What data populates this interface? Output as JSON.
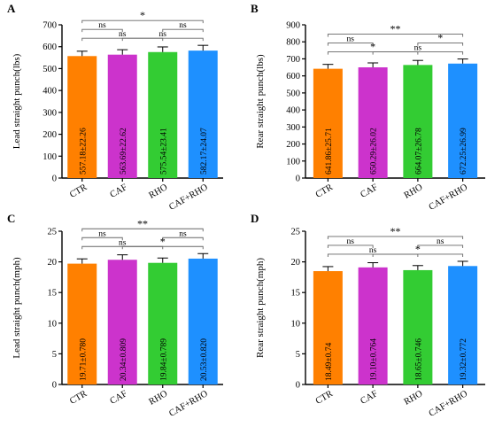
{
  "colors": {
    "CTR": "#FF8000",
    "CAF": "#CC33CC",
    "RHO": "#33CC33",
    "CAF+RHO": "#1E90FF",
    "axis": "#000000",
    "bracket": "#666666"
  },
  "chart_data": [
    {
      "panel": "A",
      "type": "bar",
      "ylabel": "Lead straight punch(lbs)",
      "categories": [
        "CTR",
        "CAF",
        "RHO",
        "CAF+RHO"
      ],
      "values": [
        557.18,
        563.69,
        575.54,
        582.17
      ],
      "errors": [
        22.26,
        22.62,
        23.41,
        24.07
      ],
      "value_labels": [
        "557.18±22.26",
        "563.69±22.62",
        "575.54±23.41",
        "582.17±24.07"
      ],
      "ylim": [
        0,
        700
      ],
      "yticks": [
        "0",
        "100",
        "200",
        "300",
        "400",
        "500",
        "600",
        "700"
      ],
      "yticks_values": [
        0,
        100,
        200,
        300,
        400,
        500,
        600,
        700
      ],
      "brackets": [
        {
          "from": 0,
          "to": 3,
          "label": "*",
          "level": 3
        },
        {
          "from": 0,
          "to": 1,
          "label": "ns",
          "level": 2
        },
        {
          "from": 2,
          "to": 3,
          "label": "ns",
          "level": 2
        },
        {
          "from": 0,
          "to": 2,
          "label": "ns",
          "level": 1
        },
        {
          "from": 1,
          "to": 3,
          "label": "ns",
          "level": 1
        }
      ]
    },
    {
      "panel": "B",
      "type": "bar",
      "ylabel": "Rear straight punch(lbs)",
      "categories": [
        "CTR",
        "CAF",
        "RHO",
        "CAF+RHO"
      ],
      "values": [
        641.86,
        650.29,
        664.07,
        672.25
      ],
      "errors": [
        25.71,
        26.02,
        26.78,
        26.99
      ],
      "value_labels": [
        "641.86±25.71",
        "650.29±26.02",
        "664.07±26.78",
        "672.25±26.99"
      ],
      "ylim": [
        0,
        900
      ],
      "yticks": [
        "0",
        "100",
        "200",
        "300",
        "400",
        "500",
        "600",
        "700",
        "800",
        "900"
      ],
      "yticks_values": [
        0,
        100,
        200,
        300,
        400,
        500,
        600,
        700,
        800,
        900
      ],
      "brackets": [
        {
          "from": 0,
          "to": 3,
          "label": "**",
          "level": 3
        },
        {
          "from": 0,
          "to": 1,
          "label": "ns",
          "level": 2
        },
        {
          "from": 2,
          "to": 3,
          "label": "*",
          "level": 2
        },
        {
          "from": 0,
          "to": 2,
          "label": "*",
          "level": 1
        },
        {
          "from": 1,
          "to": 3,
          "label": "ns",
          "level": 1
        }
      ]
    },
    {
      "panel": "C",
      "type": "bar",
      "ylabel": "Lead straight punch(mph)",
      "categories": [
        "CTR",
        "CAF",
        "RHO",
        "CAF+RHO"
      ],
      "values": [
        19.71,
        20.34,
        19.84,
        20.53
      ],
      "errors": [
        0.78,
        0.809,
        0.789,
        0.82
      ],
      "value_labels": [
        "19.71±0.780",
        "20.34±0.809",
        "19.84±0.789",
        "20.53±0.820"
      ],
      "ylim": [
        0,
        25
      ],
      "yticks": [
        "0",
        "5",
        "10",
        "15",
        "20",
        "25"
      ],
      "yticks_values": [
        0,
        5,
        10,
        15,
        20,
        25
      ],
      "brackets": [
        {
          "from": 0,
          "to": 3,
          "label": "**",
          "level": 3
        },
        {
          "from": 0,
          "to": 1,
          "label": "ns",
          "level": 2
        },
        {
          "from": 2,
          "to": 3,
          "label": "ns",
          "level": 2
        },
        {
          "from": 0,
          "to": 2,
          "label": "ns",
          "level": 1
        },
        {
          "from": 1,
          "to": 3,
          "label": "*",
          "level": 1
        }
      ]
    },
    {
      "panel": "D",
      "type": "bar",
      "ylabel": "Rear straight punch(mph)",
      "categories": [
        "CTR",
        "CAF",
        "RHO",
        "CAF+RHO"
      ],
      "values": [
        18.49,
        19.1,
        18.65,
        19.32
      ],
      "errors": [
        0.74,
        0.764,
        0.746,
        0.772
      ],
      "value_labels": [
        "18.49±0.74",
        "19.10±0.764",
        "18.65±0.746",
        "19.32±0.772"
      ],
      "ylim": [
        0,
        25
      ],
      "yticks": [
        "0",
        "5",
        "10",
        "15",
        "20",
        "25"
      ],
      "yticks_values": [
        0,
        5,
        10,
        15,
        20,
        25
      ],
      "brackets": [
        {
          "from": 0,
          "to": 3,
          "label": "**",
          "level": 3
        },
        {
          "from": 0,
          "to": 1,
          "label": "ns",
          "level": 2
        },
        {
          "from": 2,
          "to": 3,
          "label": "ns",
          "level": 2
        },
        {
          "from": 0,
          "to": 2,
          "label": "ns",
          "level": 1
        },
        {
          "from": 1,
          "to": 3,
          "label": "*",
          "level": 1
        }
      ]
    }
  ]
}
